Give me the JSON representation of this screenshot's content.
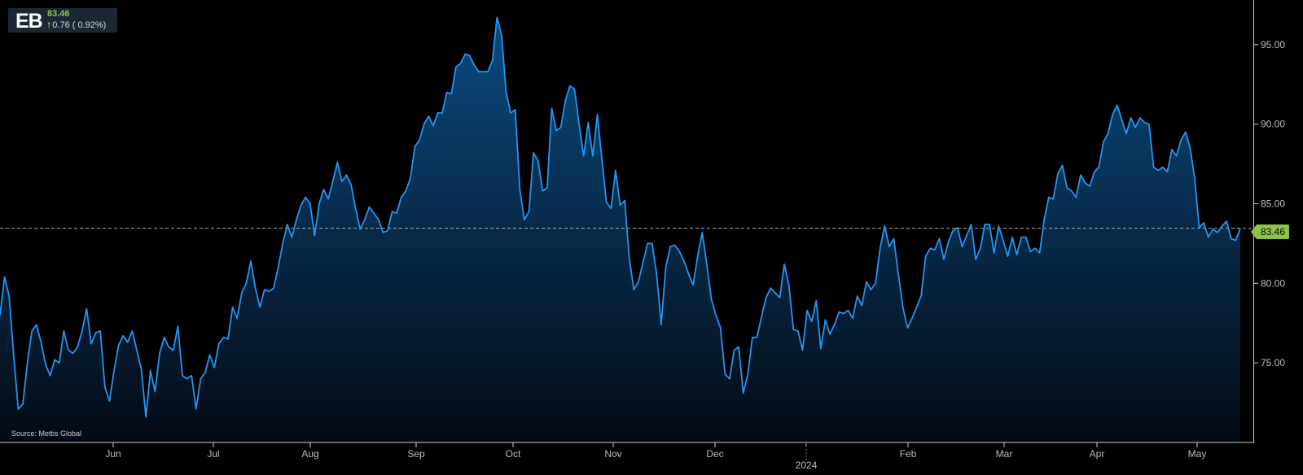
{
  "ticker": {
    "symbol": "EB",
    "price": "83.46",
    "change": "0.76 ( 0.92%)"
  },
  "source": "Source: Mettis Global",
  "last_price_label": "83.46",
  "colors": {
    "line": "#2196f3",
    "area_top": "#0a4a7f",
    "area_bottom": "#040a14",
    "up": "#8bc34a",
    "axis_text": "#bbbbbb"
  },
  "chart_data": {
    "type": "area",
    "title": "",
    "xlabel": "",
    "ylabel": "",
    "x_ticks": [
      "Jun",
      "Jul",
      "Aug",
      "Sep",
      "Oct",
      "Nov",
      "Dec",
      "2024",
      "Feb",
      "Mar",
      "Apr",
      "May"
    ],
    "y_ticks": [
      "75.00",
      "80.00",
      "85.00",
      "90.00",
      "95.00"
    ],
    "ylim": [
      70.0,
      97.8
    ],
    "last_value": 83.46,
    "grid": false,
    "series": [
      {
        "values": [
          78.0,
          80.4,
          79.2,
          75.5,
          72.1,
          72.4,
          75.0,
          77.0,
          77.4,
          76.3,
          74.9,
          74.2,
          75.2,
          75.0,
          77.0,
          75.8,
          75.6,
          76.0,
          77.0,
          78.4,
          76.2,
          76.9,
          77.0,
          73.5,
          72.6,
          74.5,
          76.1,
          76.7,
          76.3,
          77.0,
          75.8,
          74.6,
          71.6,
          74.5,
          73.2,
          75.6,
          76.6,
          76.0,
          75.8,
          77.3,
          74.2,
          74.0,
          74.2,
          72.1,
          74.0,
          74.4,
          75.5,
          74.7,
          76.2,
          76.6,
          76.5,
          78.5,
          77.8,
          79.4,
          80.0,
          81.4,
          79.7,
          78.5,
          79.6,
          79.5,
          79.7,
          81.0,
          82.5,
          83.7,
          82.9,
          84.0,
          84.9,
          85.4,
          85.0,
          83.0,
          85.0,
          85.9,
          85.3,
          86.4,
          87.6,
          86.4,
          86.8,
          86.2,
          84.7,
          83.4,
          84.0,
          84.8,
          84.4,
          84.0,
          83.2,
          83.3,
          84.5,
          84.4,
          85.4,
          85.8,
          86.6,
          88.6,
          89.0,
          90.0,
          90.5,
          89.9,
          90.7,
          90.7,
          92.0,
          91.9,
          93.6,
          93.8,
          94.4,
          94.3,
          93.7,
          93.3,
          93.3,
          93.3,
          94.0,
          96.7,
          95.6,
          92.0,
          90.7,
          90.9,
          85.9,
          84.0,
          84.5,
          88.2,
          87.7,
          85.8,
          86.0,
          91.0,
          89.6,
          89.8,
          91.5,
          92.4,
          92.2,
          90.0,
          88.0,
          90.1,
          88.0,
          90.6,
          87.8,
          85.1,
          84.7,
          87.1,
          84.9,
          85.2,
          81.6,
          79.6,
          80.1,
          81.3,
          82.5,
          82.5,
          80.6,
          77.4,
          81.0,
          82.3,
          82.4,
          82.0,
          81.4,
          80.6,
          79.9,
          81.7,
          83.2,
          81.2,
          79.0,
          78.0,
          77.2,
          74.3,
          74.0,
          75.8,
          76.0,
          73.1,
          74.3,
          76.6,
          76.6,
          77.9,
          79.1,
          79.7,
          79.4,
          79.1,
          81.2,
          79.9,
          77.1,
          77.0,
          75.8,
          78.3,
          77.6,
          78.9,
          75.9,
          77.7,
          76.8,
          77.4,
          78.2,
          78.1,
          78.3,
          77.8,
          79.2,
          78.6,
          80.1,
          79.6,
          80.0,
          82.2,
          83.6,
          82.3,
          82.8,
          80.6,
          78.5,
          77.2,
          77.8,
          78.5,
          79.2,
          81.7,
          82.2,
          82.1,
          82.8,
          81.5,
          82.6,
          83.3,
          83.5,
          82.3,
          83.0,
          83.7,
          81.5,
          82.2,
          83.7,
          83.7,
          81.9,
          83.6,
          82.7,
          81.7,
          82.9,
          81.8,
          82.9,
          82.9,
          82.0,
          82.2,
          81.9,
          84.0,
          85.4,
          85.3,
          86.9,
          87.4,
          86.0,
          85.8,
          85.4,
          86.8,
          86.3,
          86.1,
          87.0,
          87.3,
          88.9,
          89.4,
          90.6,
          91.2,
          90.3,
          89.4,
          90.4,
          89.8,
          90.4,
          90.1,
          90.0,
          87.3,
          87.1,
          87.3,
          87.0,
          88.4,
          88.0,
          89.0,
          89.5,
          88.5,
          86.6,
          83.5,
          83.8,
          82.9,
          83.4,
          83.2,
          83.6,
          83.9,
          82.8,
          82.7,
          83.46
        ]
      }
    ]
  }
}
